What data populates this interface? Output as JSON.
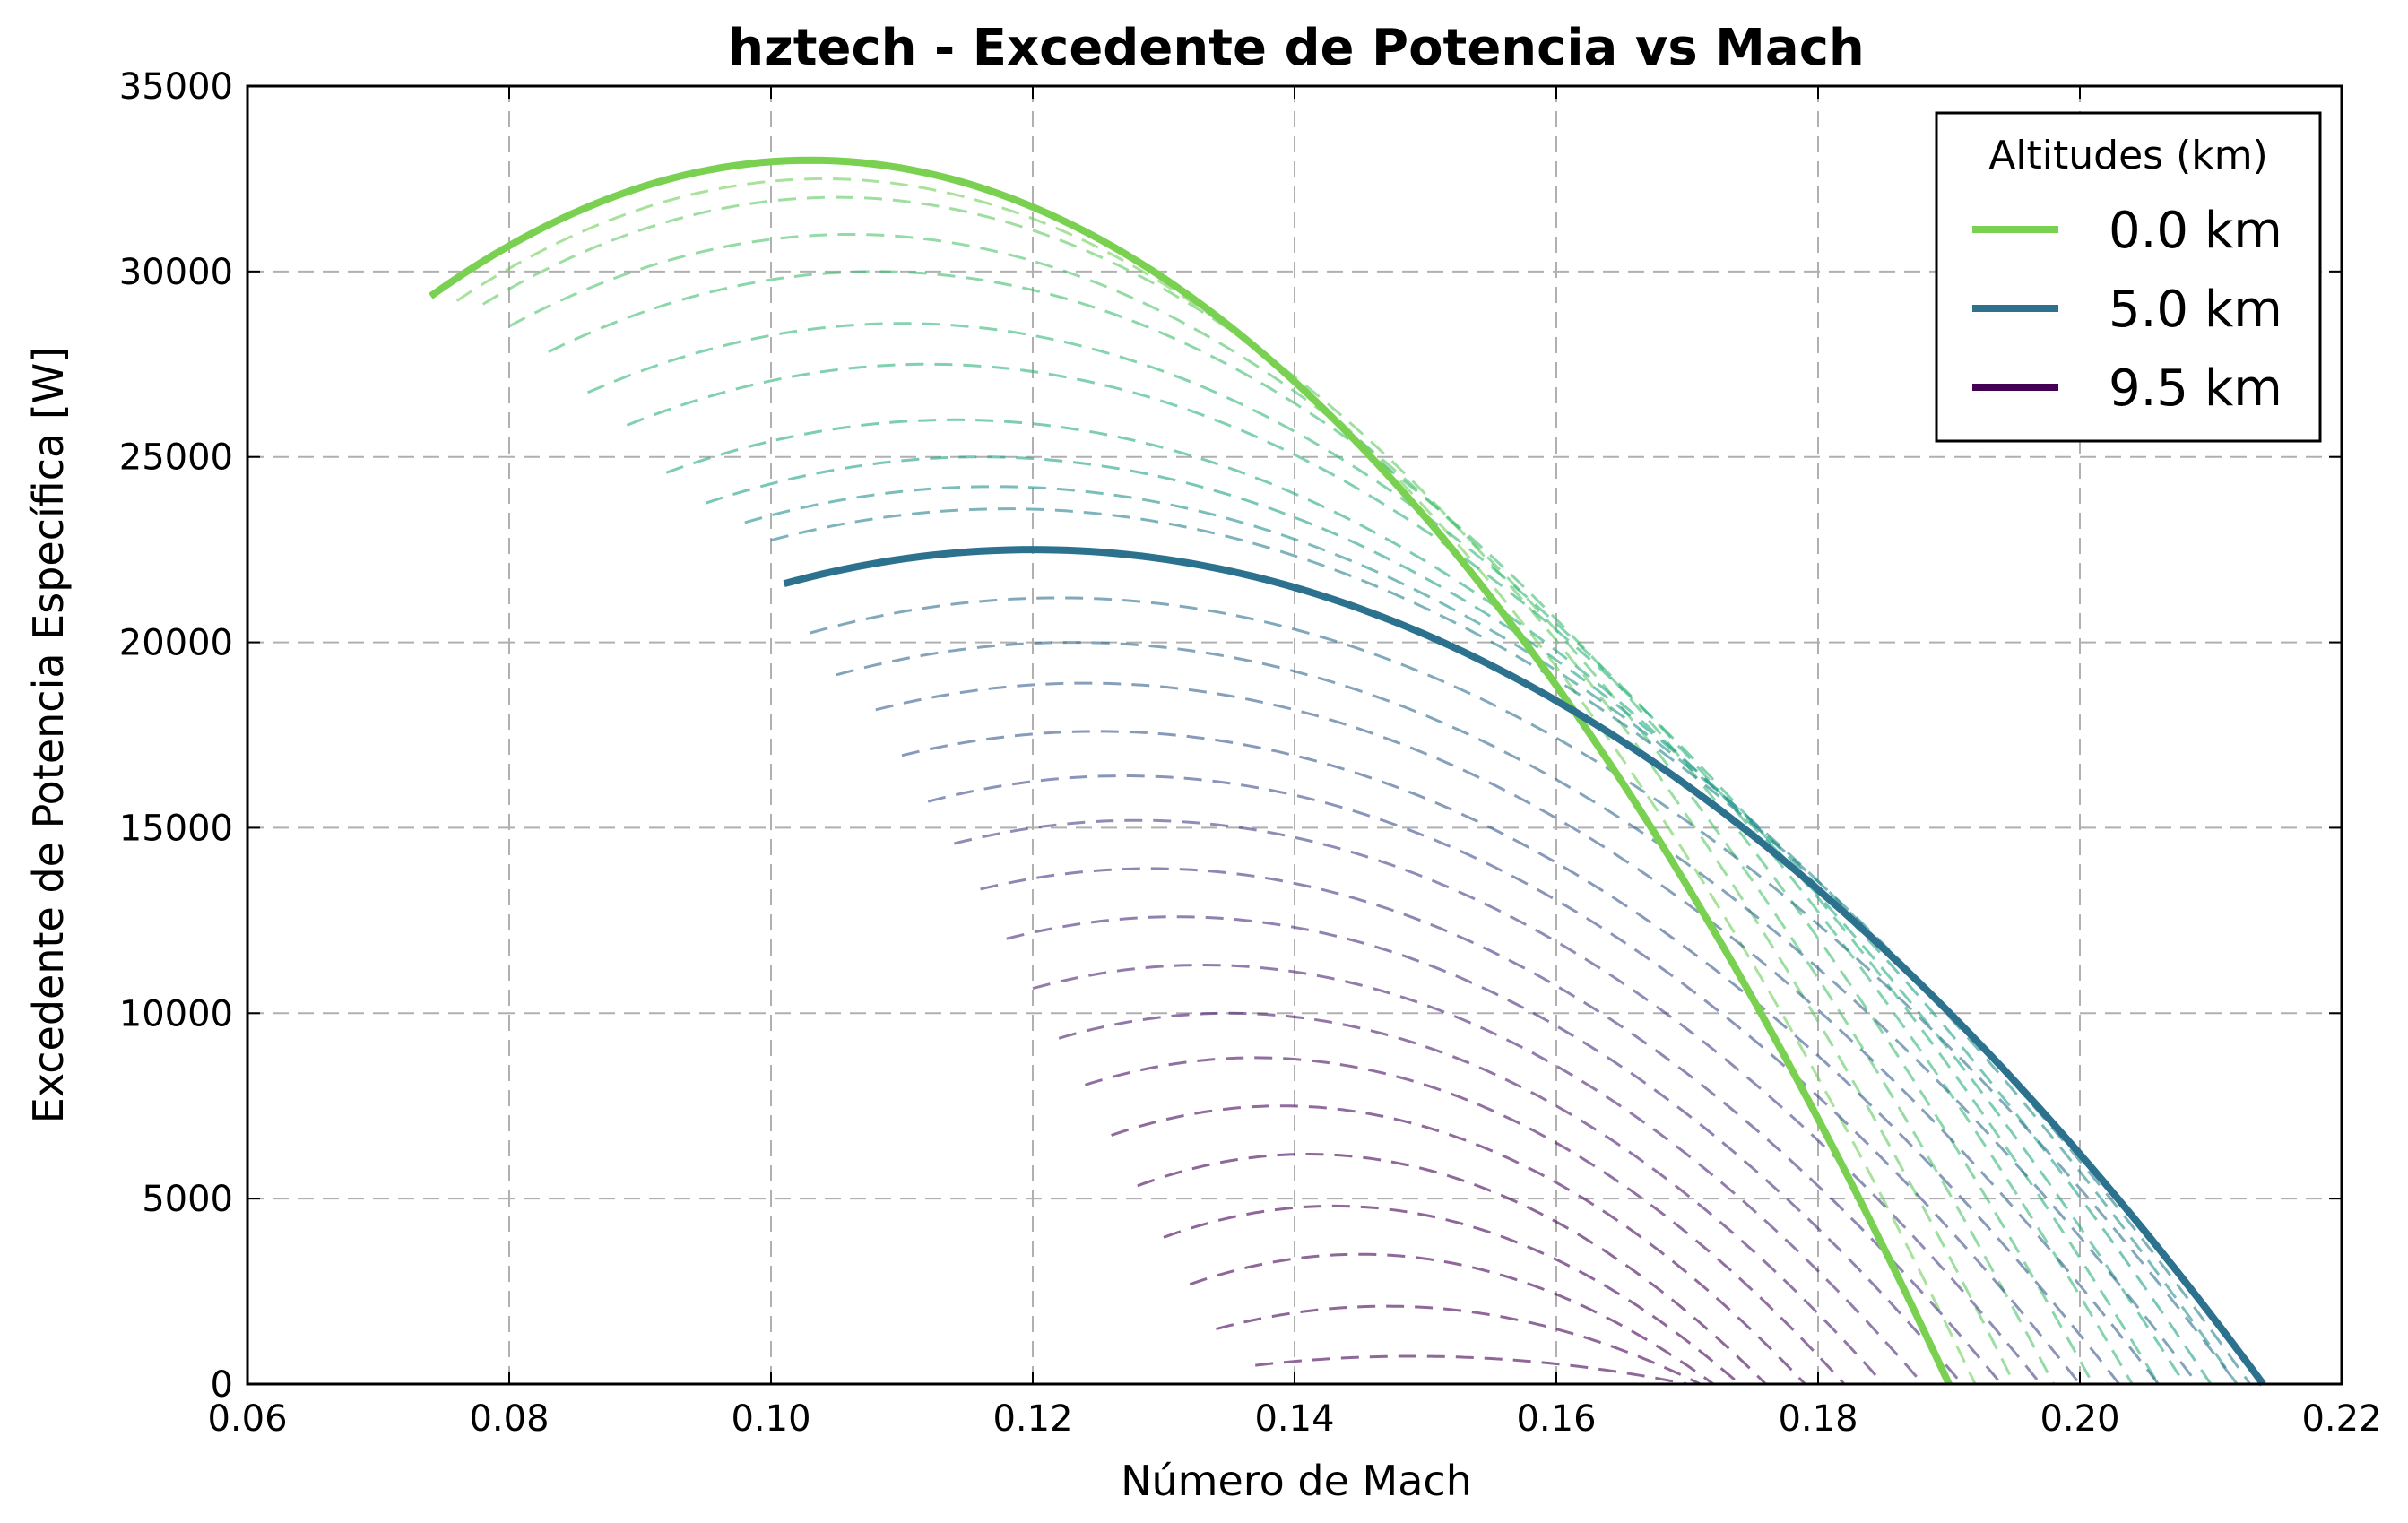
{
  "chart_data": {
    "type": "line",
    "title": "hztech - Excedente de Potencia vs Mach",
    "xlabel": "Número de Mach",
    "ylabel": "Excedente de Potencia Específica [W]",
    "xlim": [
      0.06,
      0.22
    ],
    "ylim": [
      0,
      35000
    ],
    "xticks": [
      0.06,
      0.08,
      0.1,
      0.12,
      0.14,
      0.16,
      0.18,
      0.2,
      0.22
    ],
    "xtick_labels": [
      "0.06",
      "0.08",
      "0.10",
      "0.12",
      "0.14",
      "0.16",
      "0.18",
      "0.20",
      "0.22"
    ],
    "yticks": [
      0,
      5000,
      10000,
      15000,
      20000,
      25000,
      30000,
      35000
    ],
    "ytick_labels": [
      "0",
      "5000",
      "10000",
      "15000",
      "20000",
      "25000",
      "30000",
      "35000"
    ],
    "grid": true,
    "legend": {
      "title": "Altitudes (km)",
      "placement": "top-right",
      "entries": [
        {
          "label": "0.0 km",
          "color": "#7ad151"
        },
        {
          "label": "5.0 km",
          "color": "#2c728e"
        },
        {
          "label": "9.5 km",
          "color": "#440154"
        }
      ]
    },
    "series": [
      {
        "altitude_km": 0.0,
        "style": "solid",
        "color": "#7ad151",
        "m_start": 0.074,
        "m_peak": 0.103,
        "m_end": 0.19,
        "y_peak": 33000
      },
      {
        "altitude_km": 0.5,
        "style": "dashed",
        "color": "#6ece58",
        "m_start": 0.076,
        "m_peak": 0.104,
        "m_end": 0.192,
        "y_peak": 32500
      },
      {
        "altitude_km": 1.0,
        "style": "dashed",
        "color": "#5ec962",
        "m_start": 0.078,
        "m_peak": 0.105,
        "m_end": 0.195,
        "y_peak": 32000
      },
      {
        "altitude_km": 1.5,
        "style": "dashed",
        "color": "#4ec36b",
        "m_start": 0.08,
        "m_peak": 0.106,
        "m_end": 0.198,
        "y_peak": 31000
      },
      {
        "altitude_km": 2.0,
        "style": "dashed",
        "color": "#40bd72",
        "m_start": 0.083,
        "m_peak": 0.108,
        "m_end": 0.201,
        "y_peak": 30000
      },
      {
        "altitude_km": 2.5,
        "style": "dashed",
        "color": "#35b779",
        "m_start": 0.086,
        "m_peak": 0.11,
        "m_end": 0.204,
        "y_peak": 28600
      },
      {
        "altitude_km": 3.0,
        "style": "dashed",
        "color": "#2db27d",
        "m_start": 0.089,
        "m_peak": 0.112,
        "m_end": 0.206,
        "y_peak": 27500
      },
      {
        "altitude_km": 3.5,
        "style": "dashed",
        "color": "#25ac82",
        "m_start": 0.092,
        "m_peak": 0.114,
        "m_end": 0.208,
        "y_peak": 26000
      },
      {
        "altitude_km": 4.0,
        "style": "dashed",
        "color": "#1fa187",
        "m_start": 0.095,
        "m_peak": 0.116,
        "m_end": 0.21,
        "y_peak": 25000
      },
      {
        "altitude_km": 4.5,
        "style": "dashed",
        "color": "#21918c",
        "m_start": 0.098,
        "m_peak": 0.117,
        "m_end": 0.212,
        "y_peak": 24200
      },
      {
        "altitude_km": 4.8,
        "style": "dashed",
        "color": "#26828e",
        "m_start": 0.1,
        "m_peak": 0.118,
        "m_end": 0.213,
        "y_peak": 23600
      },
      {
        "altitude_km": 5.0,
        "style": "solid",
        "color": "#2c728e",
        "m_start": 0.101,
        "m_peak": 0.12,
        "m_end": 0.214,
        "y_peak": 22500
      },
      {
        "altitude_km": 5.5,
        "style": "dashed",
        "color": "#2e6f8e",
        "m_start": 0.103,
        "m_peak": 0.122,
        "m_end": 0.212,
        "y_peak": 21200
      },
      {
        "altitude_km": 6.0,
        "style": "dashed",
        "color": "#31688e",
        "m_start": 0.105,
        "m_peak": 0.123,
        "m_end": 0.209,
        "y_peak": 20000
      },
      {
        "altitude_km": 6.5,
        "style": "dashed",
        "color": "#355f8d",
        "m_start": 0.108,
        "m_peak": 0.124,
        "m_end": 0.206,
        "y_peak": 18900
      },
      {
        "altitude_km": 7.0,
        "style": "dashed",
        "color": "#39568c",
        "m_start": 0.11,
        "m_peak": 0.125,
        "m_end": 0.203,
        "y_peak": 17600
      },
      {
        "altitude_km": 7.5,
        "style": "dashed",
        "color": "#3e4c8a",
        "m_start": 0.112,
        "m_peak": 0.127,
        "m_end": 0.2,
        "y_peak": 16400
      },
      {
        "altitude_km": 7.8,
        "style": "dashed",
        "color": "#424186",
        "m_start": 0.114,
        "m_peak": 0.128,
        "m_end": 0.197,
        "y_peak": 15200
      },
      {
        "altitude_km": 8.0,
        "style": "dashed",
        "color": "#453781",
        "m_start": 0.116,
        "m_peak": 0.129,
        "m_end": 0.194,
        "y_peak": 13900
      },
      {
        "altitude_km": 8.3,
        "style": "dashed",
        "color": "#472d7b",
        "m_start": 0.118,
        "m_peak": 0.131,
        "m_end": 0.191,
        "y_peak": 12600
      },
      {
        "altitude_km": 8.6,
        "style": "dashed",
        "color": "#482475",
        "m_start": 0.12,
        "m_peak": 0.133,
        "m_end": 0.188,
        "y_peak": 11300
      },
      {
        "altitude_km": 8.9,
        "style": "dashed",
        "color": "#481a6c",
        "m_start": 0.122,
        "m_peak": 0.135,
        "m_end": 0.185,
        "y_peak": 10000
      },
      {
        "altitude_km": 9.1,
        "style": "dashed",
        "color": "#471063",
        "m_start": 0.124,
        "m_peak": 0.137,
        "m_end": 0.182,
        "y_peak": 8800
      },
      {
        "altitude_km": 9.2,
        "style": "dashed",
        "color": "#46085c",
        "m_start": 0.126,
        "m_peak": 0.139,
        "m_end": 0.179,
        "y_peak": 7500
      },
      {
        "altitude_km": 9.3,
        "style": "dashed",
        "color": "#450457",
        "m_start": 0.128,
        "m_peak": 0.141,
        "m_end": 0.176,
        "y_peak": 6200
      },
      {
        "altitude_km": 9.35,
        "style": "dashed",
        "color": "#440256",
        "m_start": 0.13,
        "m_peak": 0.143,
        "m_end": 0.174,
        "y_peak": 4800
      },
      {
        "altitude_km": 9.4,
        "style": "dashed",
        "color": "#440155",
        "m_start": 0.132,
        "m_peak": 0.145,
        "m_end": 0.172,
        "y_peak": 3500
      },
      {
        "altitude_km": 9.45,
        "style": "dashed",
        "color": "#440155",
        "m_start": 0.134,
        "m_peak": 0.147,
        "m_end": 0.171,
        "y_peak": 2100
      },
      {
        "altitude_km": 9.5,
        "style": "dashed",
        "color": "#440154",
        "m_start": 0.137,
        "m_peak": 0.149,
        "m_end": 0.17,
        "y_peak": 750
      }
    ]
  }
}
